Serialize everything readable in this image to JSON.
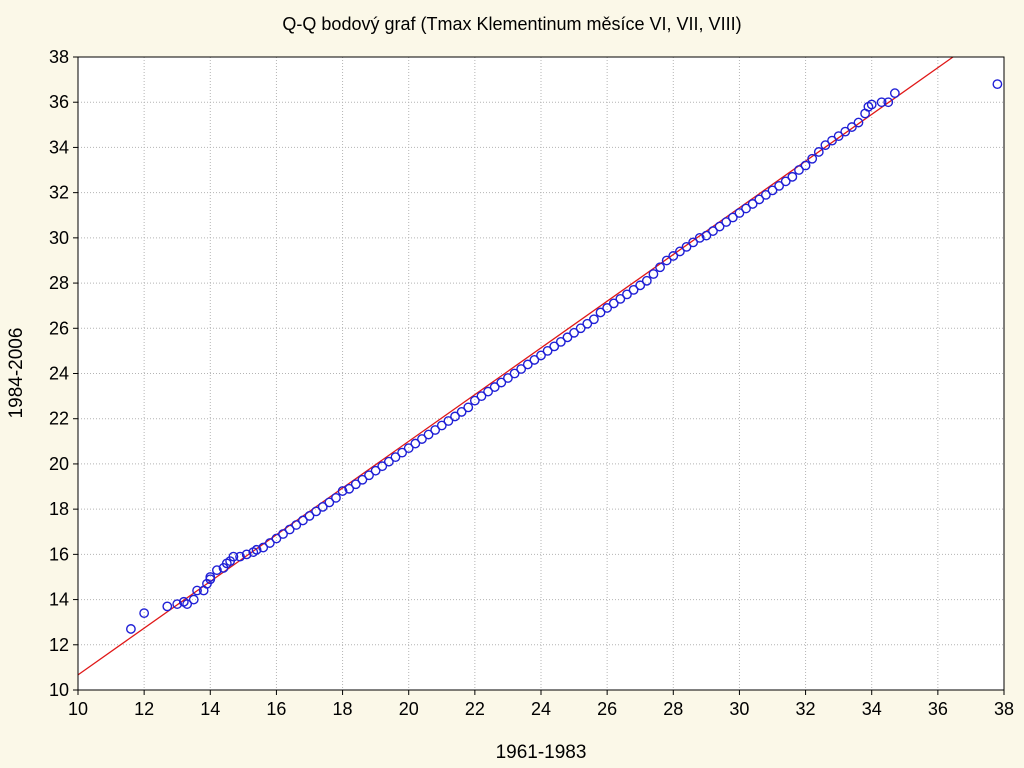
{
  "chart_data": {
    "type": "scatter",
    "title": "Q-Q bodový graf (Tmax Klementinum měsíce VI, VII, VIII)",
    "xlabel": "1961-1983",
    "ylabel": "1984-2006",
    "xlim": [
      10,
      38
    ],
    "ylim": [
      10,
      38
    ],
    "xticks": [
      "10",
      "12",
      "14",
      "16",
      "18",
      "20",
      "22",
      "24",
      "26",
      "28",
      "30",
      "32",
      "34",
      "36",
      "38"
    ],
    "yticks": [
      "10",
      "12",
      "14",
      "16",
      "18",
      "20",
      "22",
      "24",
      "26",
      "28",
      "30",
      "32",
      "34",
      "36",
      "38"
    ],
    "grid": true,
    "colors": {
      "points": "#1f1fd6",
      "line": "#e01818",
      "background": "#fbf8e8",
      "plot": "#ffffff"
    },
    "reference_line": {
      "slope": 1.033,
      "intercept": 0.34
    },
    "series": [
      {
        "points": [
          [
            11.6,
            12.7
          ],
          [
            12.0,
            13.4
          ],
          [
            12.7,
            13.7
          ],
          [
            13.0,
            13.8
          ],
          [
            13.2,
            13.9
          ],
          [
            13.3,
            13.8
          ],
          [
            13.5,
            14.0
          ],
          [
            13.6,
            14.4
          ],
          [
            13.8,
            14.4
          ],
          [
            13.9,
            14.7
          ],
          [
            14.0,
            14.9
          ],
          [
            14.0,
            15.0
          ],
          [
            14.2,
            15.3
          ],
          [
            14.4,
            15.4
          ],
          [
            14.5,
            15.6
          ],
          [
            14.6,
            15.7
          ],
          [
            14.7,
            15.9
          ],
          [
            14.9,
            15.9
          ],
          [
            15.1,
            16.0
          ],
          [
            15.3,
            16.1
          ],
          [
            15.4,
            16.2
          ],
          [
            15.6,
            16.3
          ],
          [
            15.8,
            16.5
          ],
          [
            16.0,
            16.7
          ],
          [
            16.2,
            16.9
          ],
          [
            16.4,
            17.1
          ],
          [
            16.6,
            17.3
          ],
          [
            16.8,
            17.5
          ],
          [
            17.0,
            17.7
          ],
          [
            17.2,
            17.9
          ],
          [
            17.4,
            18.1
          ],
          [
            17.6,
            18.3
          ],
          [
            17.8,
            18.5
          ],
          [
            18.0,
            18.8
          ],
          [
            18.2,
            18.9
          ],
          [
            18.4,
            19.1
          ],
          [
            18.6,
            19.3
          ],
          [
            18.8,
            19.5
          ],
          [
            19.0,
            19.7
          ],
          [
            19.2,
            19.9
          ],
          [
            19.4,
            20.1
          ],
          [
            19.6,
            20.3
          ],
          [
            19.8,
            20.5
          ],
          [
            20.0,
            20.7
          ],
          [
            20.2,
            20.9
          ],
          [
            20.4,
            21.1
          ],
          [
            20.6,
            21.3
          ],
          [
            20.8,
            21.5
          ],
          [
            21.0,
            21.7
          ],
          [
            21.2,
            21.9
          ],
          [
            21.4,
            22.1
          ],
          [
            21.6,
            22.3
          ],
          [
            21.8,
            22.5
          ],
          [
            22.0,
            22.8
          ],
          [
            22.2,
            23.0
          ],
          [
            22.4,
            23.2
          ],
          [
            22.6,
            23.4
          ],
          [
            22.8,
            23.6
          ],
          [
            23.0,
            23.8
          ],
          [
            23.2,
            24.0
          ],
          [
            23.4,
            24.2
          ],
          [
            23.6,
            24.4
          ],
          [
            23.8,
            24.6
          ],
          [
            24.0,
            24.8
          ],
          [
            24.2,
            25.0
          ],
          [
            24.4,
            25.2
          ],
          [
            24.6,
            25.4
          ],
          [
            24.8,
            25.6
          ],
          [
            25.0,
            25.8
          ],
          [
            25.2,
            26.0
          ],
          [
            25.4,
            26.2
          ],
          [
            25.6,
            26.4
          ],
          [
            25.8,
            26.7
          ],
          [
            26.0,
            26.9
          ],
          [
            26.2,
            27.1
          ],
          [
            26.4,
            27.3
          ],
          [
            26.6,
            27.5
          ],
          [
            26.8,
            27.7
          ],
          [
            27.0,
            27.9
          ],
          [
            27.2,
            28.1
          ],
          [
            27.4,
            28.4
          ],
          [
            27.6,
            28.7
          ],
          [
            27.8,
            29.0
          ],
          [
            28.0,
            29.2
          ],
          [
            28.2,
            29.4
          ],
          [
            28.4,
            29.6
          ],
          [
            28.6,
            29.8
          ],
          [
            28.8,
            30.0
          ],
          [
            29.0,
            30.1
          ],
          [
            29.2,
            30.3
          ],
          [
            29.4,
            30.5
          ],
          [
            29.6,
            30.7
          ],
          [
            29.8,
            30.9
          ],
          [
            30.0,
            31.1
          ],
          [
            30.2,
            31.3
          ],
          [
            30.4,
            31.5
          ],
          [
            30.6,
            31.7
          ],
          [
            30.8,
            31.9
          ],
          [
            31.0,
            32.1
          ],
          [
            31.2,
            32.3
          ],
          [
            31.4,
            32.5
          ],
          [
            31.6,
            32.7
          ],
          [
            31.8,
            33.0
          ],
          [
            32.0,
            33.2
          ],
          [
            32.2,
            33.5
          ],
          [
            32.4,
            33.8
          ],
          [
            32.6,
            34.1
          ],
          [
            32.8,
            34.3
          ],
          [
            33.0,
            34.5
          ],
          [
            33.2,
            34.7
          ],
          [
            33.4,
            34.9
          ],
          [
            33.6,
            35.1
          ],
          [
            33.8,
            35.5
          ],
          [
            33.9,
            35.8
          ],
          [
            34.0,
            35.9
          ],
          [
            34.3,
            36.0
          ],
          [
            34.5,
            36.0
          ],
          [
            34.7,
            36.4
          ],
          [
            37.8,
            36.8
          ]
        ]
      }
    ]
  }
}
